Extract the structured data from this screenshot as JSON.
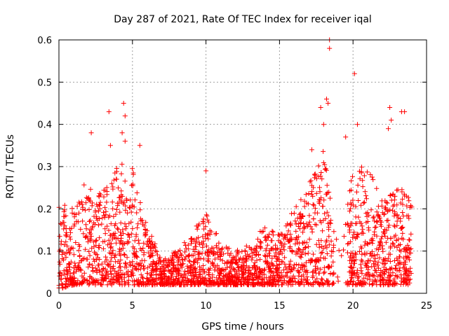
{
  "chart_data": {
    "type": "scatter",
    "title": "Day 287 of 2021, Rate Of TEC Index for receiver iqal",
    "xlabel": "GPS time / hours",
    "ylabel": "ROTI / TECUs",
    "xlim": [
      0,
      25
    ],
    "ylim": [
      0,
      0.6
    ],
    "x_ticks": [
      "0",
      "5",
      "10",
      "15",
      "20",
      "25"
    ],
    "y_ticks": [
      "0",
      "0.1",
      "0.2",
      "0.3",
      "0.4",
      "0.5",
      "0.6"
    ],
    "grid": true,
    "marker": "+",
    "color": "#ff0000",
    "envelope": {
      "description": "Approximate per-hour spread of the plotted points (hour, typical upper ROTI, lower ROTI)",
      "hour": [
        0,
        1,
        2,
        3,
        4,
        5,
        6,
        7,
        8,
        9,
        10,
        11,
        12,
        13,
        14,
        15,
        16,
        17,
        18,
        19,
        20,
        21,
        22,
        23,
        24
      ],
      "upper": [
        0.22,
        0.2,
        0.28,
        0.24,
        0.32,
        0.3,
        0.16,
        0.08,
        0.1,
        0.14,
        0.2,
        0.12,
        0.1,
        0.12,
        0.16,
        0.14,
        0.2,
        0.26,
        0.34,
        0.1,
        0.3,
        0.3,
        0.22,
        0.26,
        0.22
      ],
      "lower": [
        0.01,
        0.02,
        0.02,
        0.02,
        0.02,
        0.02,
        0.02,
        0.02,
        0.02,
        0.02,
        0.02,
        0.02,
        0.02,
        0.02,
        0.02,
        0.02,
        0.02,
        0.02,
        0.02,
        0.02,
        0.02,
        0.02,
        0.02,
        0.02,
        0.02
      ]
    },
    "outliers": [
      {
        "x": 2.2,
        "y": 0.38
      },
      {
        "x": 3.4,
        "y": 0.43
      },
      {
        "x": 4.4,
        "y": 0.45
      },
      {
        "x": 4.5,
        "y": 0.42
      },
      {
        "x": 4.3,
        "y": 0.38
      },
      {
        "x": 3.5,
        "y": 0.35
      },
      {
        "x": 4.5,
        "y": 0.36
      },
      {
        "x": 5.5,
        "y": 0.35
      },
      {
        "x": 10.0,
        "y": 0.29
      },
      {
        "x": 17.2,
        "y": 0.34
      },
      {
        "x": 17.8,
        "y": 0.44
      },
      {
        "x": 18.2,
        "y": 0.46
      },
      {
        "x": 18.3,
        "y": 0.45
      },
      {
        "x": 18.4,
        "y": 0.6
      },
      {
        "x": 18.4,
        "y": 0.58
      },
      {
        "x": 18.0,
        "y": 0.4
      },
      {
        "x": 19.5,
        "y": 0.37
      },
      {
        "x": 20.1,
        "y": 0.52
      },
      {
        "x": 20.3,
        "y": 0.4
      },
      {
        "x": 22.5,
        "y": 0.44
      },
      {
        "x": 22.6,
        "y": 0.41
      },
      {
        "x": 23.3,
        "y": 0.43
      },
      {
        "x": 23.5,
        "y": 0.43
      },
      {
        "x": 22.4,
        "y": 0.39
      }
    ]
  }
}
